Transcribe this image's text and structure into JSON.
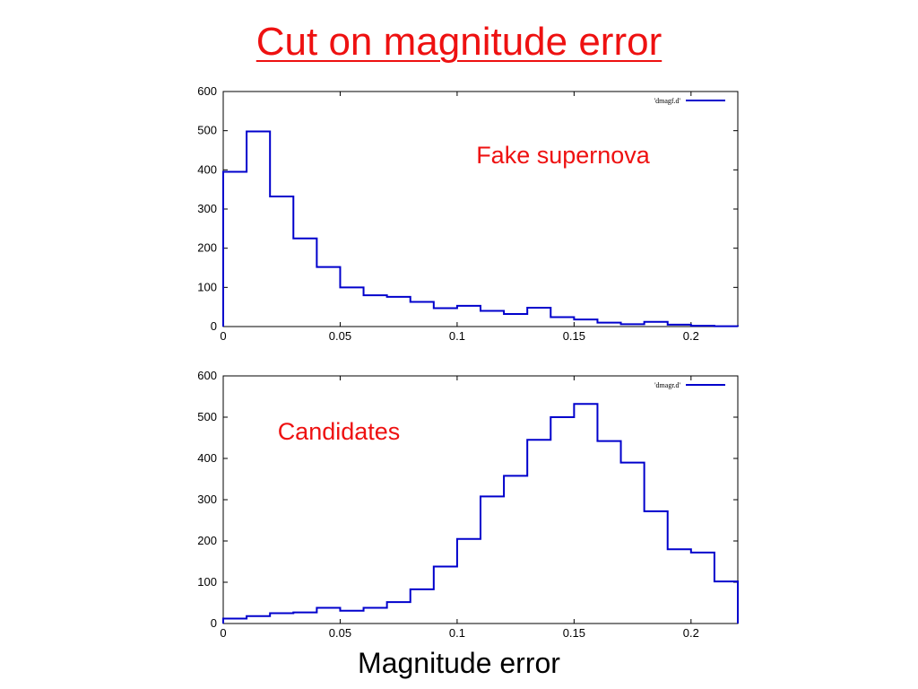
{
  "slide": {
    "title": "Cut on magnitude error",
    "xaxis_caption": "Magnitude error"
  },
  "colors": {
    "title": "#ee1111",
    "series": "#0000cc",
    "annotation": "#ee1111"
  },
  "chart_data": [
    {
      "type": "histogram",
      "title": "",
      "xlabel": "",
      "ylabel": "",
      "xlim": [
        0,
        0.22
      ],
      "ylim": [
        0,
        600
      ],
      "xticks": [
        "0",
        "0.05",
        "0.1",
        "0.15",
        "0.2"
      ],
      "yticks": [
        "0",
        "100",
        "200",
        "300",
        "400",
        "500",
        "600"
      ],
      "grid": false,
      "legend": "top-right",
      "annotation": "Fake supernova",
      "bin_width": 0.01,
      "series": [
        {
          "name": "'dmagf.d'",
          "x": [
            0,
            0.01,
            0.02,
            0.03,
            0.04,
            0.05,
            0.06,
            0.07,
            0.08,
            0.09,
            0.1,
            0.11,
            0.12,
            0.13,
            0.14,
            0.15,
            0.16,
            0.17,
            0.18,
            0.19,
            0.2,
            0.21
          ],
          "values": [
            395,
            498,
            332,
            225,
            152,
            100,
            80,
            76,
            63,
            47,
            53,
            40,
            32,
            48,
            24,
            18,
            10,
            6,
            12,
            5,
            2,
            1
          ]
        }
      ]
    },
    {
      "type": "histogram",
      "title": "",
      "xlabel": "",
      "ylabel": "",
      "xlim": [
        0,
        0.22
      ],
      "ylim": [
        0,
        600
      ],
      "xticks": [
        "0",
        "0.05",
        "0.1",
        "0.15",
        "0.2"
      ],
      "yticks": [
        "0",
        "100",
        "200",
        "300",
        "400",
        "500",
        "600"
      ],
      "grid": false,
      "legend": "top-right",
      "annotation": "Candidates",
      "bin_width": 0.01,
      "series": [
        {
          "name": "'dmagr.d'",
          "x": [
            0,
            0.01,
            0.02,
            0.03,
            0.04,
            0.05,
            0.06,
            0.07,
            0.08,
            0.09,
            0.1,
            0.11,
            0.12,
            0.13,
            0.14,
            0.15,
            0.16,
            0.17,
            0.18,
            0.19,
            0.2,
            0.21
          ],
          "values": [
            12,
            18,
            25,
            27,
            38,
            31,
            38,
            52,
            83,
            138,
            205,
            308,
            358,
            445,
            500,
            532,
            442,
            390,
            272,
            180,
            172,
            102
          ]
        }
      ]
    }
  ]
}
